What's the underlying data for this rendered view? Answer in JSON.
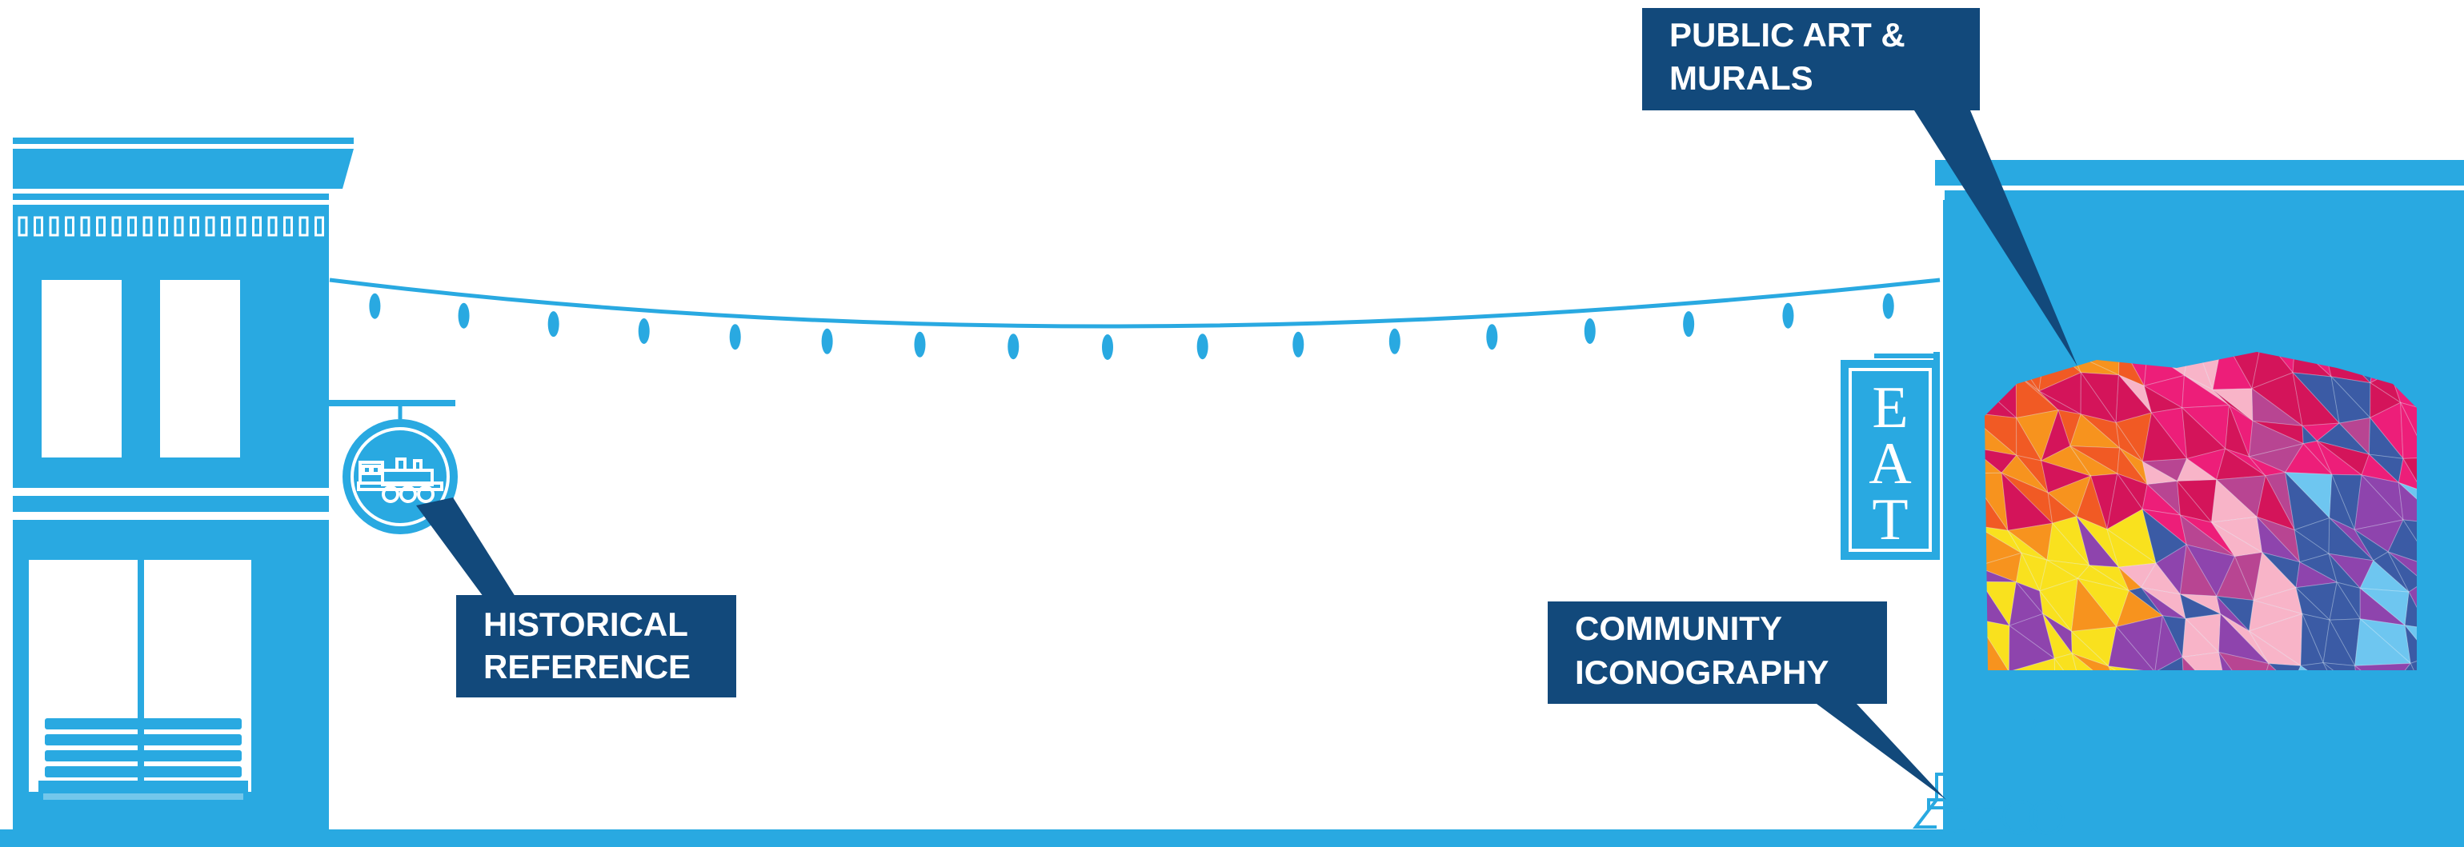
{
  "colors": {
    "building_blue": "#29a9e1",
    "callout_navy": "#12497b",
    "background": "#ffffff",
    "mural": [
      "#f15a24",
      "#f7931e",
      "#ed1e79",
      "#d4145a",
      "#f9e11e",
      "#8e44ad",
      "#3b5ba5",
      "#6ec6f0",
      "#f8b4c8",
      "#b84592"
    ]
  },
  "callouts": {
    "historical": {
      "line1": "HISTORICAL",
      "line2": "REFERENCE"
    },
    "public_art": {
      "line1": "PUBLIC ART &",
      "line2": "MURALS"
    },
    "community": {
      "line1": "COMMUNITY",
      "line2": "ICONOGRAPHY"
    }
  },
  "eat_sign": {
    "letters": [
      "E",
      "A",
      "T"
    ]
  },
  "icons": {
    "hanging_sign": "train-icon",
    "sidewalk_figure": "locomotive-icon",
    "bench": "bench-icon",
    "lights": "string-light-icon"
  }
}
